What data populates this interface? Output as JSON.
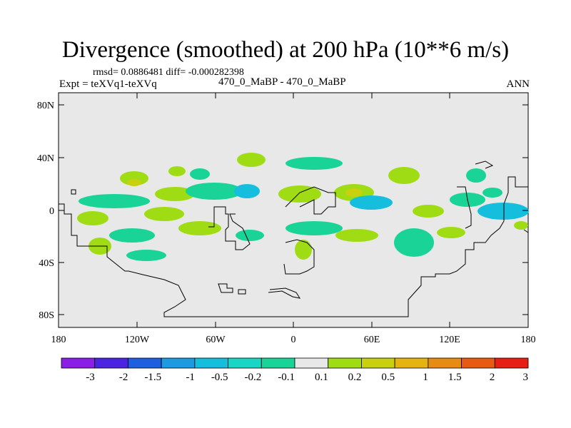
{
  "title": "Divergence (smoothed) at 200 hPa (10**6 m/s)",
  "stats_line": "rmsd= 0.0886481 diff= -0.000282398",
  "expt_label": "Expt = teXVq1-teXVq",
  "runs_label": "470_0_MaBP - 470_0_MaBP",
  "season": "ANN",
  "map": {
    "lat_ticks": [
      "80N",
      "40N",
      "0",
      "40S",
      "80S"
    ],
    "lon_ticks": [
      "180",
      "120W",
      "60W",
      "0",
      "60E",
      "120E",
      "180"
    ]
  },
  "colorbar": {
    "labels": [
      "-3",
      "-2",
      "-1.5",
      "-1",
      "-0.5",
      "-0.2",
      "-0.1",
      "0.1",
      "0.2",
      "0.5",
      "1",
      "1.5",
      "2",
      "3"
    ],
    "colors": [
      "#8a1fe6",
      "#4a24e0",
      "#1e5fe0",
      "#1e9ae0",
      "#14bedc",
      "#19d6c4",
      "#19d496",
      "#e8e8e8",
      "#a0dc14",
      "#c8d010",
      "#e6b410",
      "#e68c14",
      "#e65a14",
      "#e61e14"
    ]
  }
}
